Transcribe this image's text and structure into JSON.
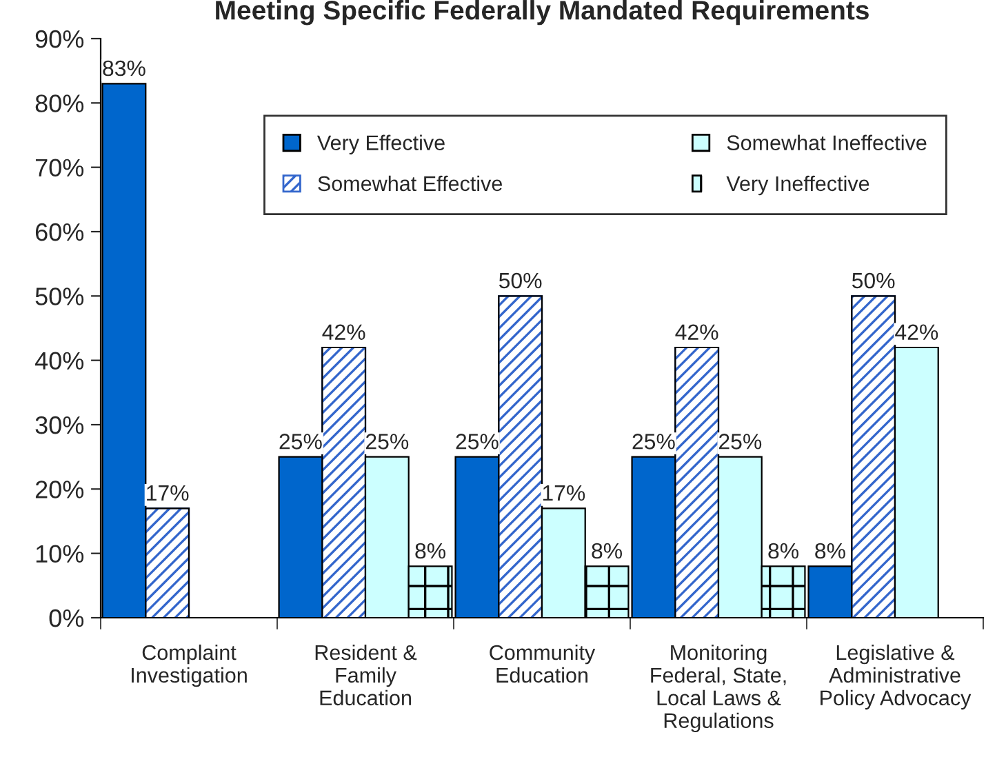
{
  "chart_data": {
    "type": "bar",
    "title": "Meeting Specific Federally Mandated Requirements",
    "categories": [
      "Complaint\nInvestigation",
      "Resident &\nFamily\nEducation",
      "Community\nEducation",
      "Monitoring\nFederal, State,\nLocal Laws &\nRegulations",
      "Legislative &\nAdministrative\nPolicy Advocacy"
    ],
    "series": [
      {
        "name": "Very Effective",
        "color": "#0066cc",
        "values": [
          83,
          25,
          25,
          25,
          8
        ],
        "value_labels": [
          "83%",
          "25%",
          "25%",
          "25%",
          "8%"
        ]
      },
      {
        "name": "Somewhat Effective",
        "color": "#3366cc",
        "values": [
          17,
          42,
          50,
          42,
          50
        ],
        "value_labels": [
          "17%",
          "42%",
          "50%",
          "42%",
          "50%"
        ]
      },
      {
        "name": "Somewhat Ineffective",
        "color": "#ccffff",
        "values": [
          null,
          25,
          17,
          25,
          42
        ],
        "value_labels": [
          null,
          "25%",
          "17%",
          "25%",
          "42%"
        ]
      },
      {
        "name": "Very Ineffective",
        "color": "#ccffff",
        "values": [
          null,
          8,
          8,
          8,
          null
        ],
        "value_labels": [
          null,
          "8%",
          "8%",
          "8%",
          null
        ]
      }
    ],
    "ylim": [
      0,
      90
    ],
    "yticks": [
      {
        "value": 0,
        "label": "0%"
      },
      {
        "value": 10,
        "label": "10%"
      },
      {
        "value": 20,
        "label": "20%"
      },
      {
        "value": 30,
        "label": "30%"
      },
      {
        "value": 40,
        "label": "40%"
      },
      {
        "value": 50,
        "label": "50%"
      },
      {
        "value": 60,
        "label": "60%"
      },
      {
        "value": 70,
        "label": "70%"
      },
      {
        "value": 80,
        "label": "80%"
      },
      {
        "value": 90,
        "label": "90%"
      }
    ],
    "grid": false,
    "legend": "top right"
  }
}
